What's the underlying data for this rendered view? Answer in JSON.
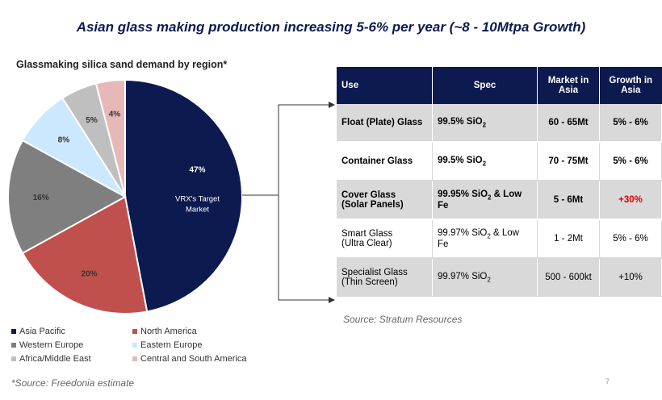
{
  "title": "Asian glass making production increasing 5-6% per year (~8 - 10Mtpa Growth)",
  "colors": {
    "navy": "#0d1a4f",
    "north_america": "#c0504d",
    "western_europe": "#7f7f7f",
    "eastern_europe": "#cce8ff",
    "africa_middle_east": "#bfbfbf",
    "central_south_america": "#e6b8b7",
    "highlight_red": "#e00000"
  },
  "chart_data": {
    "type": "pie",
    "title": "Glassmaking silica sand demand by region*",
    "slices": [
      {
        "name": "Asia Pacific",
        "value": 47,
        "label": "47%",
        "color": "#0d1a4f",
        "annotation": [
          "VRX's Target",
          "Market"
        ]
      },
      {
        "name": "North America",
        "value": 20,
        "label": "20%",
        "color": "#c0504d"
      },
      {
        "name": "Western Europe",
        "value": 16,
        "label": "16%",
        "color": "#7f7f7f"
      },
      {
        "name": "Eastern Europe",
        "value": 8,
        "label": "8%",
        "color": "#cce8ff"
      },
      {
        "name": "Africa/Middle East",
        "value": 5,
        "label": "5%",
        "color": "#bfbfbf"
      },
      {
        "name": "Central and South America",
        "value": 4,
        "label": "4%",
        "color": "#e6b8b7"
      }
    ],
    "legend_placement": "bottom"
  },
  "legend": [
    {
      "label": "Asia Pacific",
      "color": "#0d1a4f"
    },
    {
      "label": "North America",
      "color": "#c0504d"
    },
    {
      "label": "Western Europe",
      "color": "#7f7f7f"
    },
    {
      "label": "Eastern Europe",
      "color": "#cce8ff"
    },
    {
      "label": "Africa/Middle East",
      "color": "#bfbfbf"
    },
    {
      "label": "Central and South America",
      "color": "#e6b8b7"
    }
  ],
  "table": {
    "headers": {
      "use": "Use",
      "spec": "Spec",
      "market": "Market in Asia",
      "growth": "Growth in Asia"
    },
    "rows": [
      {
        "use": [
          "Float (Plate) Glass"
        ],
        "spec_pre": "99.5% SiO",
        "spec_sub": "2",
        "spec_post": "",
        "market": "60 - 65Mt",
        "growth": "5% - 6%",
        "bold": true,
        "red": false
      },
      {
        "use": [
          "Container Glass"
        ],
        "spec_pre": "99.5% SiO",
        "spec_sub": "2",
        "spec_post": "",
        "market": "70 - 75Mt",
        "growth": "5% - 6%",
        "bold": true,
        "red": false
      },
      {
        "use": [
          "Cover Glass",
          "(Solar Panels)"
        ],
        "spec_pre": "99.95% SiO",
        "spec_sub": "2",
        "spec_post": " & Low Fe",
        "market": "5 - 6Mt",
        "growth": "+30%",
        "bold": true,
        "red": true
      },
      {
        "use": [
          "Smart Glass",
          "(Ultra Clear)"
        ],
        "spec_pre": "99.97% SiO",
        "spec_sub": "2",
        "spec_post": " & Low Fe",
        "market": "1 - 2Mt",
        "growth": "5% - 6%",
        "bold": false,
        "red": false
      },
      {
        "use": [
          "Specialist Glass",
          "(Thin Screen)"
        ],
        "spec_pre": "99.97% SiO",
        "spec_sub": "2",
        "spec_post": "",
        "market": "500 - 600kt",
        "growth": "+10%",
        "bold": false,
        "red": false
      }
    ]
  },
  "source": "Source: Stratum Resources",
  "footnote": "*Source: Freedonia estimate",
  "page_number": "7"
}
